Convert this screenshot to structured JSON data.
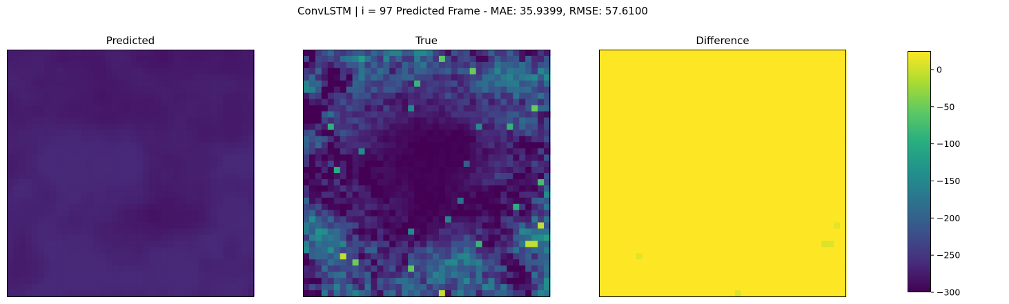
{
  "suptitle": "ConvLSTM | i = 97 Predicted Frame - MAE: 35.9399, RMSE: 57.6100",
  "chart_data": {
    "type": "heatmap",
    "grid": "off",
    "cmap": "viridis",
    "panels": [
      {
        "title": "Predicted",
        "value_range": [
          -300,
          -260
        ]
      },
      {
        "title": "True",
        "value_range": [
          -300,
          -5
        ]
      },
      {
        "title": "Difference",
        "value_range": [
          -300,
          25
        ]
      }
    ],
    "colorbar": {
      "vmin": -300,
      "vmax": 25,
      "ticks": [
        0,
        -50,
        -100,
        -150,
        -200,
        -250,
        -300
      ],
      "tick_labels": [
        "0",
        "−50",
        "−100",
        "−150",
        "−200",
        "−250",
        "−300"
      ]
    }
  }
}
